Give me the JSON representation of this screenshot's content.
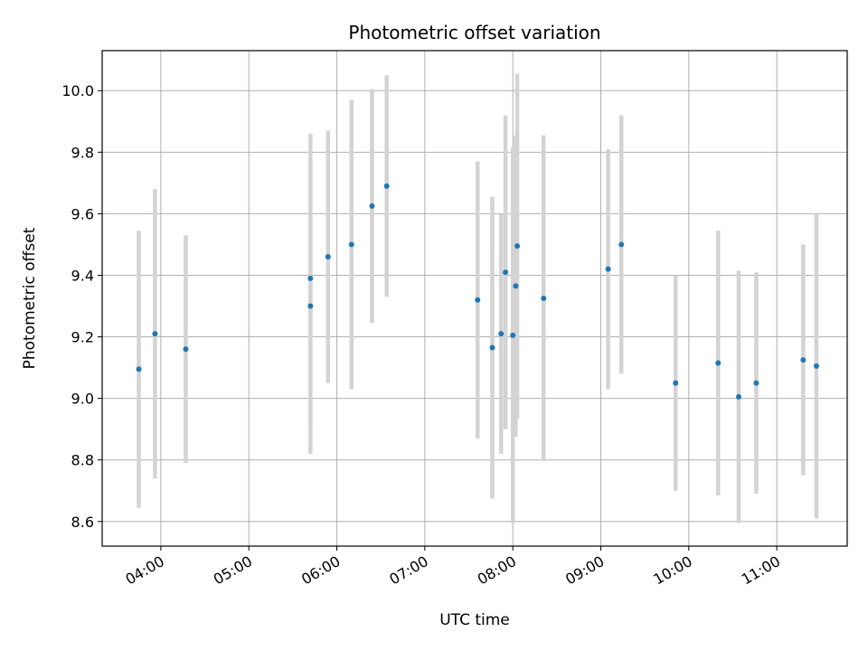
{
  "chart_data": {
    "type": "scatter",
    "title": "Photometric offset variation",
    "xlabel": "UTC time",
    "ylabel": "Photometric offset",
    "x_ticks": [
      "04:00",
      "05:00",
      "06:00",
      "07:00",
      "08:00",
      "09:00",
      "10:00",
      "11:00"
    ],
    "y_ticks": [
      "8.6",
      "8.8",
      "9.0",
      "9.2",
      "9.4",
      "9.6",
      "9.8",
      "10.0"
    ],
    "xlim": [
      "03:20",
      "11:48"
    ],
    "ylim": [
      8.52,
      10.13
    ],
    "grid": true,
    "colors": {
      "point": "#1f77b4",
      "errorbar": "#d3d3d3",
      "grid": "#b0b0b0"
    },
    "points": [
      {
        "x": "03:45",
        "y": 9.095,
        "err": 0.45
      },
      {
        "x": "03:56",
        "y": 9.21,
        "err": 0.47
      },
      {
        "x": "04:17",
        "y": 9.16,
        "err": 0.37
      },
      {
        "x": "05:42",
        "y": 9.3,
        "err": 0.48
      },
      {
        "x": "05:42",
        "y": 9.39,
        "err": 0.47
      },
      {
        "x": "05:54",
        "y": 9.46,
        "err": 0.41
      },
      {
        "x": "06:10",
        "y": 9.5,
        "err": 0.47
      },
      {
        "x": "06:24",
        "y": 9.625,
        "err": 0.38
      },
      {
        "x": "06:34",
        "y": 9.69,
        "err": 0.36
      },
      {
        "x": "07:36",
        "y": 9.32,
        "err": 0.45
      },
      {
        "x": "07:46",
        "y": 9.165,
        "err": 0.49
      },
      {
        "x": "07:52",
        "y": 9.21,
        "err": 0.39
      },
      {
        "x": "07:55",
        "y": 9.41,
        "err": 0.51
      },
      {
        "x": "08:00",
        "y": 9.205,
        "err": 0.61
      },
      {
        "x": "08:02",
        "y": 9.365,
        "err": 0.49
      },
      {
        "x": "08:03",
        "y": 9.495,
        "err": 0.56
      },
      {
        "x": "08:21",
        "y": 9.325,
        "err": 0.53
      },
      {
        "x": "09:05",
        "y": 9.42,
        "err": 0.39
      },
      {
        "x": "09:14",
        "y": 9.5,
        "err": 0.42
      },
      {
        "x": "09:51",
        "y": 9.05,
        "err": 0.35
      },
      {
        "x": "10:20",
        "y": 9.115,
        "err": 0.43
      },
      {
        "x": "10:34",
        "y": 9.005,
        "err": 0.41
      },
      {
        "x": "10:46",
        "y": 9.05,
        "err": 0.36
      },
      {
        "x": "11:18",
        "y": 9.125,
        "err": 0.375
      },
      {
        "x": "11:27",
        "y": 9.105,
        "err": 0.495
      }
    ]
  }
}
